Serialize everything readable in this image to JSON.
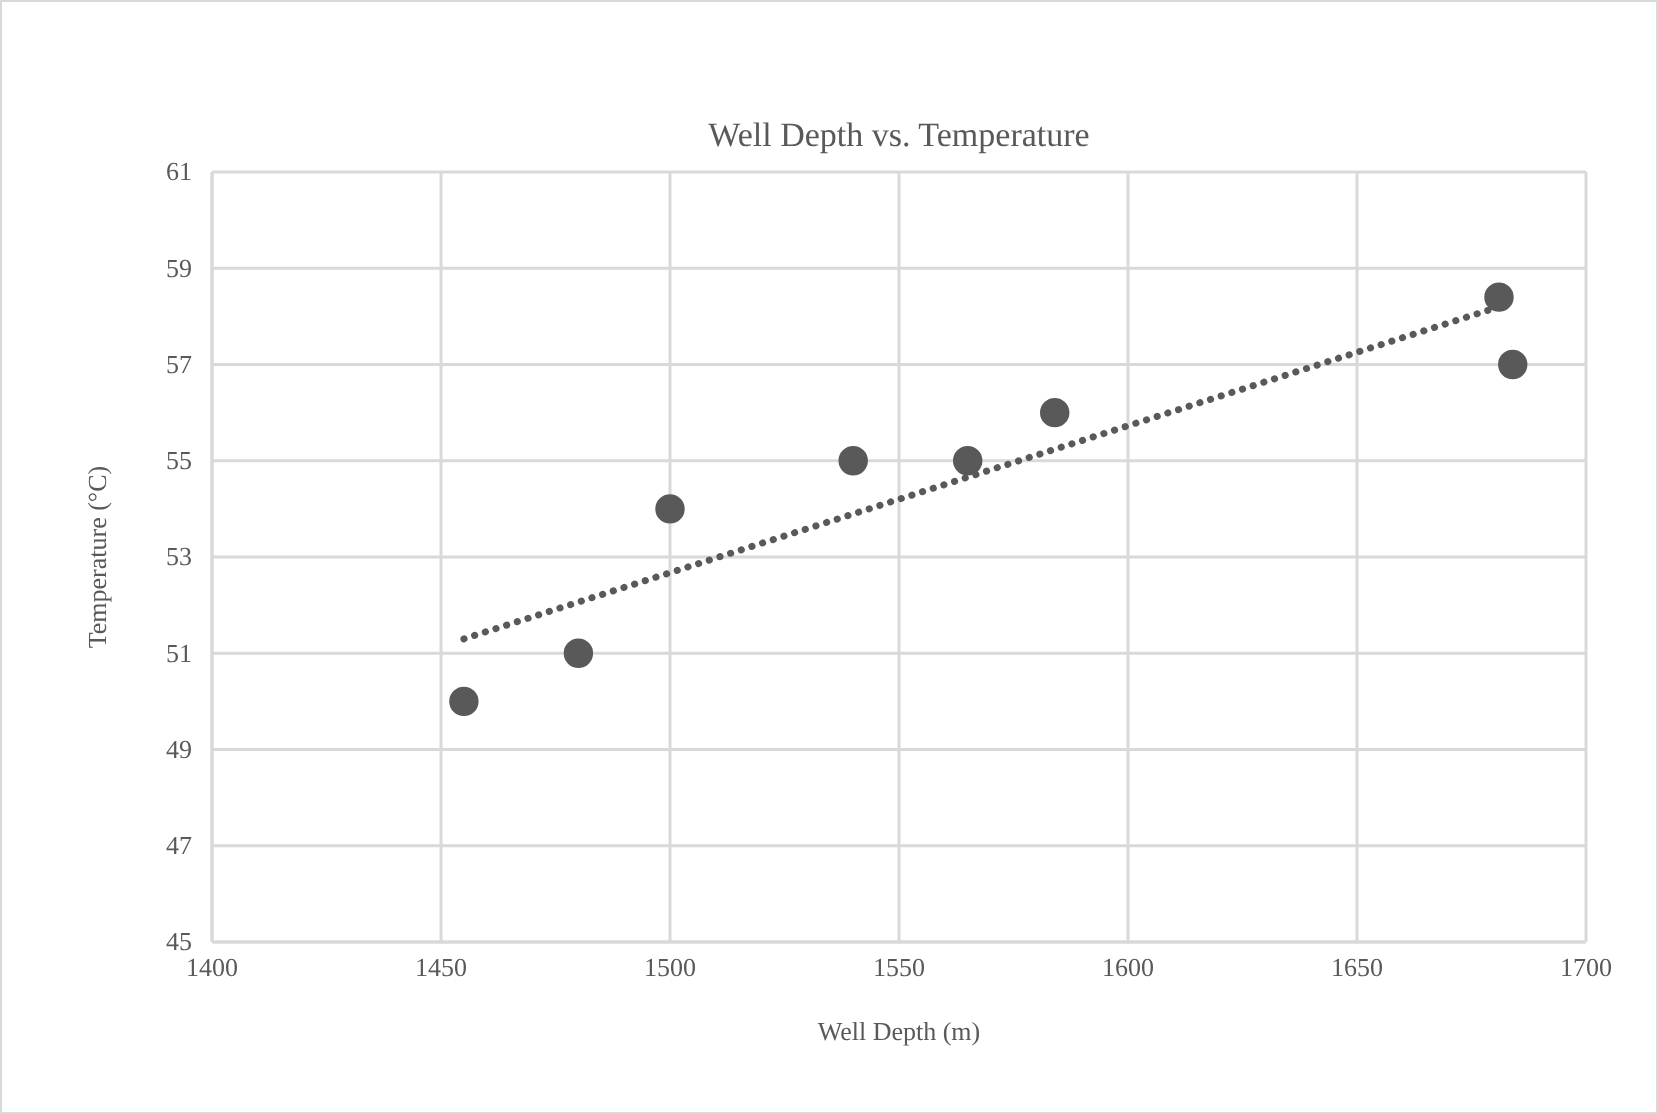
{
  "chart_data": {
    "type": "scatter",
    "title": "Well Depth vs. Temperature",
    "xlabel": "Well Depth (m)",
    "ylabel": "Temperature (°C)",
    "xlim": [
      1400,
      1700
    ],
    "xticks": [
      1400,
      1450,
      1500,
      1550,
      1600,
      1650,
      1700
    ],
    "ylim": [
      45,
      61
    ],
    "yticks": [
      45,
      47,
      49,
      51,
      53,
      55,
      57,
      59,
      61
    ],
    "grid": true,
    "marker": "circle",
    "series": [
      {
        "color": "#595959",
        "x": [
          1455,
          1480,
          1500,
          1540,
          1565,
          1584,
          1681,
          1684
        ],
        "values": [
          50,
          51,
          54,
          55,
          55,
          56,
          58.4,
          57
        ]
      },
      {
        "type": "line",
        "color": "#595959",
        "line_style": "dotted",
        "marker": "none",
        "x": [
          1455,
          1681
        ],
        "values": [
          51.3,
          58.2
        ]
      }
    ]
  }
}
